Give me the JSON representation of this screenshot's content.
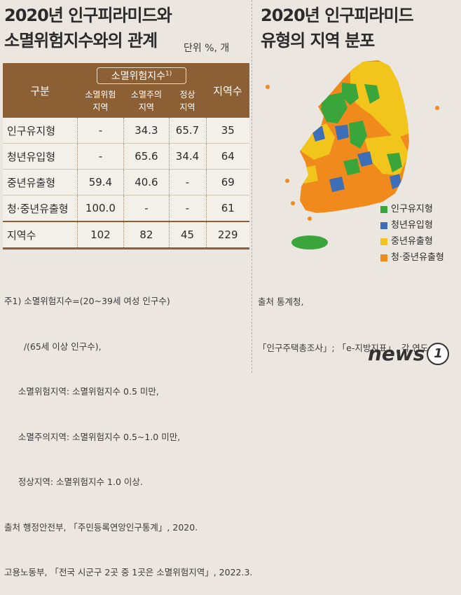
{
  "left": {
    "title_line1": "2020년 인구피라미드와",
    "title_line2": "소멸위험지수와의 관계",
    "unit": "단위  %, 개",
    "table": {
      "col_gubun": "구분",
      "group_label": "소멸위험지수",
      "group_note": "1)",
      "sub_cols": [
        "소멸위험\n지역",
        "소멸주의\n지역",
        "정상\n지역"
      ],
      "col_count": "지역수",
      "rows": [
        {
          "label": "인구유지형",
          "cells": [
            "-",
            "34.3",
            "65.7",
            "35"
          ]
        },
        {
          "label": "청년유입형",
          "cells": [
            "-",
            "65.6",
            "34.4",
            "64"
          ]
        },
        {
          "label": "중년유출형",
          "cells": [
            "59.4",
            "40.6",
            "-",
            "69"
          ]
        },
        {
          "label": "청·중년유출형",
          "cells": [
            "100.0",
            "-",
            "-",
            "61"
          ]
        }
      ],
      "total": {
        "label": "지역수",
        "cells": [
          "102",
          "82",
          "45",
          "229"
        ]
      }
    },
    "notes": [
      "주1) 소멸위험지수=(20~39세 여성 인구수)",
      "       /(65세 이상 인구수),",
      "     소멸위험지역: 소멸위험지수 0.5 미만,",
      "     소멸주의지역: 소멸위험지수 0.5~1.0 미만,",
      "     정상지역: 소멸위험지수 1.0 이상.",
      "출처 행정안전부, 「주민등록연앙인구통계」, 2020.",
      "고용노동부, 「전국 시군구 2곳 중 1곳은 소멸위험지역」, 2022.3."
    ]
  },
  "right": {
    "title_line1": "2020년 인구피라미드",
    "title_line2": "유형의 지역 분포",
    "legend": [
      {
        "label": "인구유지형",
        "color": "#3aa53a"
      },
      {
        "label": "청년유입형",
        "color": "#3d6fb8"
      },
      {
        "label": "중년유출형",
        "color": "#f2c51c"
      },
      {
        "label": "청·중년유출형",
        "color": "#f08a1c"
      }
    ],
    "source_line1": "출처 통계청,",
    "source_line2": "「인구주택총조사」; 「e-지방지표」, 각 연도."
  },
  "logo": {
    "text": "news",
    "mark": "1"
  }
}
